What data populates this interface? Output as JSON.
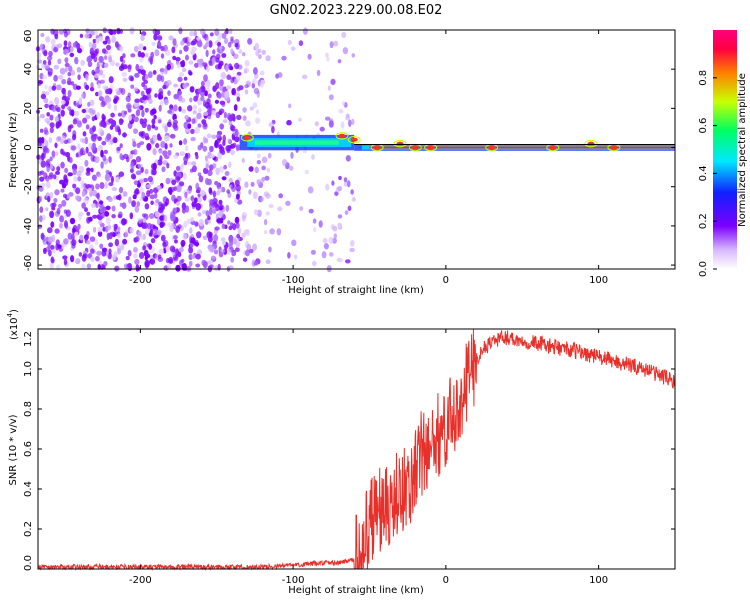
{
  "title": "GN02.2023.229.00.08.E02",
  "chart_data": [
    {
      "type": "heatmap",
      "xlabel": "Height of straight line (km)",
      "ylabel": "Frequency (Hz)",
      "xlim": [
        -267,
        150
      ],
      "ylim": [
        -62,
        60
      ],
      "xticks": [
        -200,
        -100,
        0,
        100
      ],
      "yticks": [
        -60,
        -40,
        -20,
        0,
        20,
        40,
        60
      ],
      "colorbar": {
        "label": "Normalized spectral amplitude",
        "range": [
          0,
          1
        ],
        "ticks": [
          "0.0",
          "0.2",
          "0.4",
          "0.6",
          "0.8"
        ],
        "colormap": [
          "#ffffff",
          "#d8b8ff",
          "#7a00ff",
          "#1020ff",
          "#00e8ff",
          "#00ff60",
          "#c8ff00",
          "#ff8000",
          "#ff0040",
          "#ff0080"
        ]
      },
      "band_frequency_hz": 0,
      "scatter_noise_region_km": [
        -267,
        -70
      ]
    },
    {
      "type": "line",
      "xlabel": "Height of straight line (km)",
      "ylabel": "SNR (10 * v/v)",
      "y_multiplier": "(x10",
      "y_multiplier_exp": "4",
      "ylim": [
        0,
        1.2
      ],
      "xlim": [
        -267,
        150
      ],
      "xticks": [
        -200,
        -100,
        0,
        100
      ],
      "yticks": [
        "0.0",
        "0.2",
        "0.4",
        "0.6",
        "0.8",
        "1.0",
        "1.2"
      ],
      "color": "#e8302a",
      "series": [
        {
          "x": [
            -267,
            -200,
            -150,
            -120,
            -100,
            -80,
            -70,
            -60,
            -55,
            -50,
            -45,
            -40,
            -35,
            -30,
            -25,
            -20,
            -15,
            -10,
            -5,
            0,
            5,
            10,
            15,
            20,
            25,
            30,
            35,
            40,
            50,
            60,
            70,
            80,
            90,
            100,
            110,
            120,
            130,
            140,
            150
          ],
          "values": [
            0.01,
            0.01,
            0.01,
            0.01,
            0.02,
            0.03,
            0.03,
            0.05,
            0.1,
            0.22,
            0.3,
            0.28,
            0.35,
            0.42,
            0.38,
            0.5,
            0.6,
            0.58,
            0.68,
            0.72,
            0.75,
            0.85,
            0.95,
            1.05,
            1.1,
            1.14,
            1.15,
            1.16,
            1.14,
            1.13,
            1.11,
            1.1,
            1.08,
            1.06,
            1.04,
            1.02,
            1.0,
            0.97,
            0.94
          ]
        }
      ]
    }
  ]
}
